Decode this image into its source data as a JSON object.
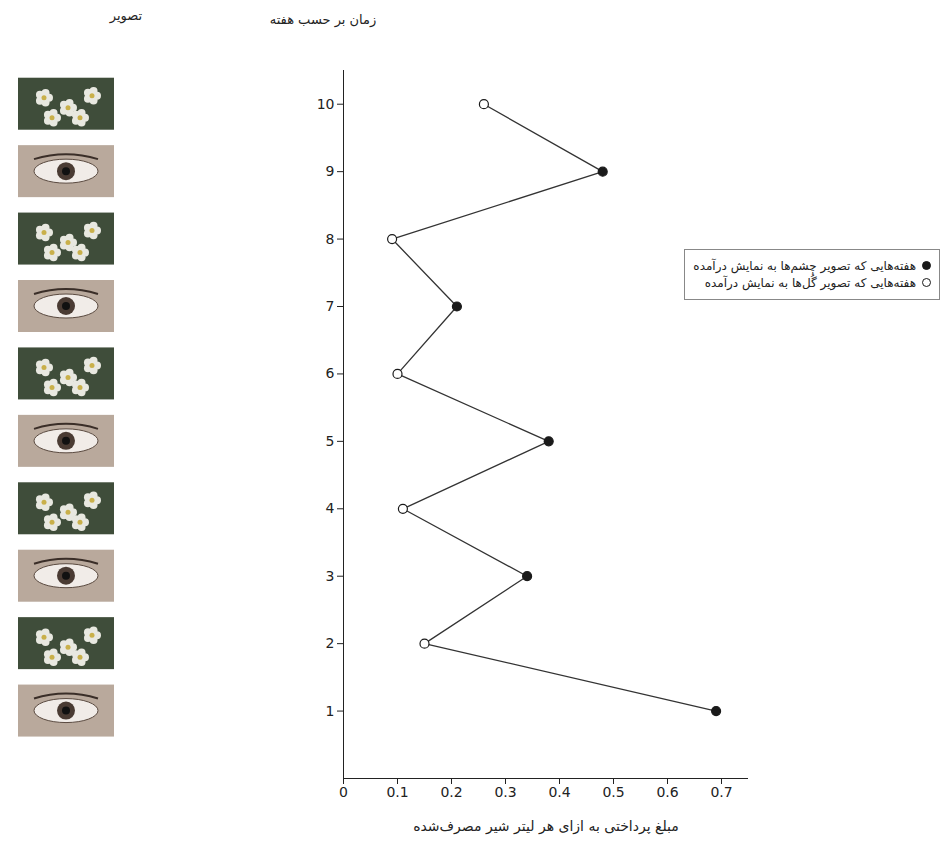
{
  "chart_data": {
    "type": "line",
    "xlabel": "مبلغ پرداختی به ازای هر لیتر شیر مصرف‌شده",
    "ylabel": "زمان بر حسب هفته",
    "image_column_label": "تصویر",
    "y": [
      1,
      2,
      3,
      4,
      5,
      6,
      7,
      8,
      9,
      10
    ],
    "color": "#333333",
    "series": [
      {
        "name": "هفته‌هایی که تصویر چشم‌ها به نمایش درآمده",
        "color": "#1a1a1a",
        "marker": "filled",
        "values": [
          0.69,
          null,
          0.34,
          null,
          0.38,
          null,
          0.21,
          null,
          0.48,
          null
        ]
      },
      {
        "name": "هفته‌هایی که تصویر گُل‌ها به نمایش درآمده",
        "color": "#1a1a1a",
        "marker": "open",
        "values": [
          null,
          0.15,
          null,
          0.11,
          null,
          0.1,
          null,
          0.09,
          null,
          0.26
        ]
      }
    ],
    "xlim": [
      0,
      0.75
    ],
    "xticks": [
      0,
      0.1,
      0.2,
      0.3,
      0.4,
      0.5,
      0.6,
      0.7
    ],
    "ylim": [
      0,
      10.5
    ],
    "yticks": [
      1,
      2,
      3,
      4,
      5,
      6,
      7,
      8,
      9,
      10
    ],
    "legend": "right"
  }
}
